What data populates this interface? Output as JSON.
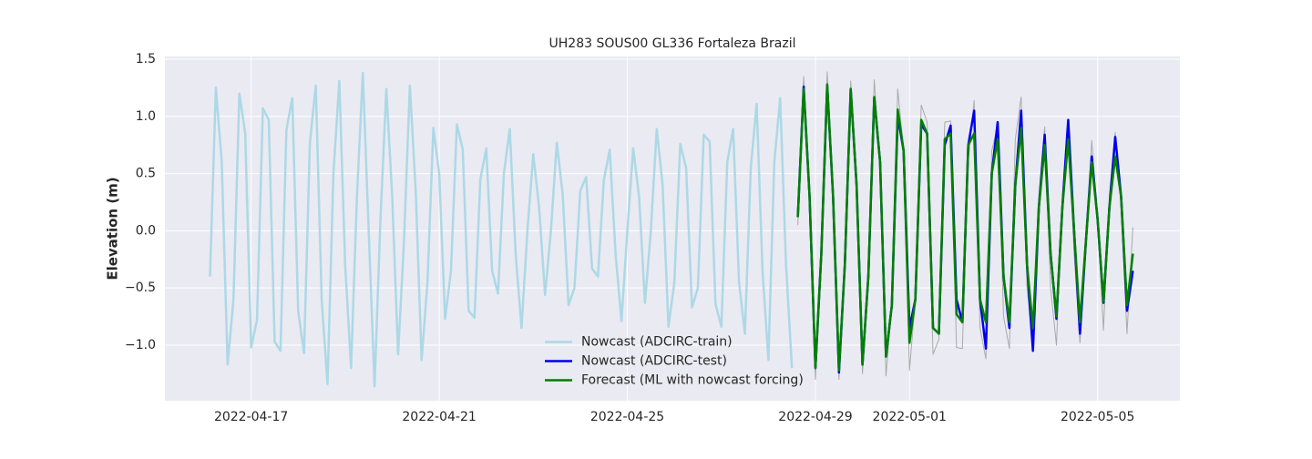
{
  "chart_data": {
    "type": "line",
    "title": "UH283 SOUS00 GL336 Fortaleza Brazil",
    "ylabel": "Elevation (m)",
    "xlim": [
      "2022-04-15T04:00",
      "2022-05-06T18:00"
    ],
    "xticks": [
      "2022-04-17",
      "2022-04-21",
      "2022-04-25",
      "2022-04-29",
      "2022-05-01",
      "2022-05-05"
    ],
    "ylim": [
      -1.486,
      1.524
    ],
    "yticks": [
      {
        "value": -1,
        "label": "−1.0"
      },
      {
        "value": -0.5,
        "label": "−0.5"
      },
      {
        "value": 0,
        "label": "0.0"
      },
      0.5,
      {
        "value": 1,
        "label": "1.0"
      },
      1.5
    ],
    "grid": true,
    "legend": "lower center",
    "series": [
      {
        "color": "#aaaaaa",
        "linewidth": 1,
        "x": [
          "2022-04-28T15:00",
          "2022-04-28T18:00",
          "2022-04-28T21:00",
          "2022-04-29T00:00",
          "2022-04-29T03:00",
          "2022-04-29T06:00",
          "2022-04-29T09:00",
          "2022-04-29T12:00",
          "2022-04-29T15:00",
          "2022-04-29T18:00",
          "2022-04-29T21:00",
          "2022-04-30T00:00",
          "2022-04-30T03:00",
          "2022-04-30T06:00",
          "2022-04-30T09:00",
          "2022-04-30T12:00",
          "2022-04-30T15:00",
          "2022-04-30T18:00",
          "2022-04-30T21:00",
          "2022-05-01T00:00",
          "2022-05-01T03:00",
          "2022-05-01T06:00",
          "2022-05-01T09:00",
          "2022-05-01T12:00",
          "2022-05-01T15:00",
          "2022-05-01T18:00",
          "2022-05-01T21:00",
          "2022-05-02T00:00",
          "2022-05-02T03:00",
          "2022-05-02T06:00",
          "2022-05-02T09:00",
          "2022-05-02T12:00",
          "2022-05-02T15:00",
          "2022-05-02T18:00",
          "2022-05-02T21:00",
          "2022-05-03T00:00",
          "2022-05-03T03:00",
          "2022-05-03T06:00",
          "2022-05-03T09:00",
          "2022-05-03T12:00",
          "2022-05-03T15:00",
          "2022-05-03T18:00",
          "2022-05-03T21:00",
          "2022-05-04T00:00",
          "2022-05-04T03:00",
          "2022-05-04T06:00",
          "2022-05-04T09:00",
          "2022-05-04T12:00",
          "2022-05-04T15:00",
          "2022-05-04T18:00",
          "2022-05-04T21:00",
          "2022-05-05T00:00",
          "2022-05-05T03:00",
          "2022-05-05T06:00",
          "2022-05-05T09:00",
          "2022-05-05T12:00",
          "2022-05-05T15:00",
          "2022-05-05T18:00"
        ],
        "values": [
          0.05,
          1.35,
          0.3,
          -1.3,
          -0.2,
          1.39,
          0.3,
          -1.3,
          -0.3,
          1.31,
          0.4,
          -1.25,
          -0.4,
          1.32,
          0.6,
          -1.27,
          -0.65,
          1.24,
          0.7,
          -1.22,
          -0.6,
          1.1,
          0.95,
          -1.08,
          -0.95,
          0.95,
          0.96,
          -1.02,
          -1.03,
          0.62,
          1.14,
          -0.85,
          -1.12,
          0.7,
          0.92,
          -0.75,
          -1.03,
          0.8,
          1.17,
          -0.5,
          -1.0,
          0.3,
          0.91,
          -0.5,
          -1.0,
          0.3,
          0.96,
          -0.2,
          -0.98,
          -0.2,
          0.79,
          0.1,
          -0.87,
          0.3,
          0.86,
          0.2,
          -0.9,
          0.03
        ]
      },
      {
        "name": "Nowcast (ADCIRC-train)",
        "color": "#add8e6",
        "linewidth": 2.5,
        "x": [
          "2022-04-16T03:00",
          "2022-04-16T06:00",
          "2022-04-16T09:00",
          "2022-04-16T12:00",
          "2022-04-16T15:00",
          "2022-04-16T18:00",
          "2022-04-16T21:00",
          "2022-04-17T00:00",
          "2022-04-17T03:00",
          "2022-04-17T06:00",
          "2022-04-17T09:00",
          "2022-04-17T12:00",
          "2022-04-17T15:00",
          "2022-04-17T18:00",
          "2022-04-17T21:00",
          "2022-04-18T00:00",
          "2022-04-18T03:00",
          "2022-04-18T06:00",
          "2022-04-18T09:00",
          "2022-04-18T12:00",
          "2022-04-18T15:00",
          "2022-04-18T18:00",
          "2022-04-18T21:00",
          "2022-04-19T00:00",
          "2022-04-19T03:00",
          "2022-04-19T06:00",
          "2022-04-19T09:00",
          "2022-04-19T12:00",
          "2022-04-19T15:00",
          "2022-04-19T18:00",
          "2022-04-19T21:00",
          "2022-04-20T00:00",
          "2022-04-20T03:00",
          "2022-04-20T06:00",
          "2022-04-20T09:00",
          "2022-04-20T12:00",
          "2022-04-20T15:00",
          "2022-04-20T18:00",
          "2022-04-20T21:00",
          "2022-04-21T00:00",
          "2022-04-21T03:00",
          "2022-04-21T06:00",
          "2022-04-21T09:00",
          "2022-04-21T12:00",
          "2022-04-21T15:00",
          "2022-04-21T18:00",
          "2022-04-21T21:00",
          "2022-04-22T00:00",
          "2022-04-22T03:00",
          "2022-04-22T06:00",
          "2022-04-22T09:00",
          "2022-04-22T12:00",
          "2022-04-22T15:00",
          "2022-04-22T18:00",
          "2022-04-22T21:00",
          "2022-04-23T00:00",
          "2022-04-23T03:00",
          "2022-04-23T06:00",
          "2022-04-23T09:00",
          "2022-04-23T12:00",
          "2022-04-23T15:00",
          "2022-04-23T18:00",
          "2022-04-23T21:00",
          "2022-04-24T00:00",
          "2022-04-24T03:00",
          "2022-04-24T06:00",
          "2022-04-24T09:00",
          "2022-04-24T12:00",
          "2022-04-24T15:00",
          "2022-04-24T18:00",
          "2022-04-24T21:00",
          "2022-04-25T00:00",
          "2022-04-25T03:00",
          "2022-04-25T06:00",
          "2022-04-25T09:00",
          "2022-04-25T12:00",
          "2022-04-25T15:00",
          "2022-04-25T18:00",
          "2022-04-25T21:00",
          "2022-04-26T00:00",
          "2022-04-26T03:00",
          "2022-04-26T06:00",
          "2022-04-26T09:00",
          "2022-04-26T12:00",
          "2022-04-26T15:00",
          "2022-04-26T18:00",
          "2022-04-26T21:00",
          "2022-04-27T00:00",
          "2022-04-27T03:00",
          "2022-04-27T06:00",
          "2022-04-27T09:00",
          "2022-04-27T12:00",
          "2022-04-27T15:00",
          "2022-04-27T18:00",
          "2022-04-27T21:00",
          "2022-04-28T00:00",
          "2022-04-28T03:00",
          "2022-04-28T06:00",
          "2022-04-28T09:00",
          "2022-04-28T12:00"
        ],
        "values": [
          -0.4,
          1.25,
          0.6,
          -1.17,
          -0.6,
          1.2,
          0.85,
          -1.02,
          -0.78,
          1.07,
          0.97,
          -0.97,
          -1.05,
          0.88,
          1.16,
          -0.7,
          -1.07,
          0.77,
          1.27,
          -0.6,
          -1.34,
          0.5,
          1.31,
          -0.3,
          -1.2,
          0.3,
          1.38,
          0.0,
          -1.36,
          0.1,
          1.24,
          0.3,
          -1.08,
          -0.1,
          1.27,
          0.35,
          -1.13,
          -0.45,
          0.9,
          0.5,
          -0.77,
          -0.35,
          0.93,
          0.71,
          -0.7,
          -0.76,
          0.45,
          0.72,
          -0.35,
          -0.55,
          0.5,
          0.89,
          -0.2,
          -0.85,
          0.0,
          0.67,
          0.2,
          -0.56,
          0.0,
          0.77,
          0.32,
          -0.65,
          -0.5,
          0.35,
          0.47,
          -0.33,
          -0.4,
          0.44,
          0.71,
          -0.2,
          -0.79,
          0.0,
          0.72,
          0.3,
          -0.63,
          0.0,
          0.89,
          0.4,
          -0.84,
          -0.45,
          0.76,
          0.55,
          -0.67,
          -0.5,
          0.84,
          0.78,
          -0.64,
          -0.84,
          0.6,
          0.89,
          -0.45,
          -0.9,
          0.55,
          1.11,
          -0.35,
          -1.13,
          0.6,
          1.16,
          -0.3,
          -1.2
        ]
      },
      {
        "name": "Nowcast (ADCIRC-test)",
        "color": "#0000ee",
        "linewidth": 2.5,
        "x": [
          "2022-04-28T15:00",
          "2022-04-28T18:00",
          "2022-04-28T21:00",
          "2022-04-29T00:00",
          "2022-04-29T03:00",
          "2022-04-29T06:00",
          "2022-04-29T09:00",
          "2022-04-29T12:00",
          "2022-04-29T15:00",
          "2022-04-29T18:00",
          "2022-04-29T21:00",
          "2022-04-30T00:00",
          "2022-04-30T03:00",
          "2022-04-30T06:00",
          "2022-04-30T09:00",
          "2022-04-30T12:00",
          "2022-04-30T15:00",
          "2022-04-30T18:00",
          "2022-04-30T21:00",
          "2022-05-01T00:00",
          "2022-05-01T03:00",
          "2022-05-01T06:00",
          "2022-05-01T09:00",
          "2022-05-01T12:00",
          "2022-05-01T15:00",
          "2022-05-01T18:00",
          "2022-05-01T21:00",
          "2022-05-02T00:00",
          "2022-05-02T03:00",
          "2022-05-02T06:00",
          "2022-05-02T09:00",
          "2022-05-02T12:00",
          "2022-05-02T15:00",
          "2022-05-02T18:00",
          "2022-05-02T21:00",
          "2022-05-03T00:00",
          "2022-05-03T03:00",
          "2022-05-03T06:00",
          "2022-05-03T09:00",
          "2022-05-03T12:00",
          "2022-05-03T15:00",
          "2022-05-03T18:00",
          "2022-05-03T21:00",
          "2022-05-04T00:00",
          "2022-05-04T03:00",
          "2022-05-04T06:00",
          "2022-05-04T09:00",
          "2022-05-04T12:00",
          "2022-05-04T15:00",
          "2022-05-04T18:00",
          "2022-05-04T21:00",
          "2022-05-05T00:00",
          "2022-05-05T03:00",
          "2022-05-05T06:00",
          "2022-05-05T09:00",
          "2022-05-05T12:00",
          "2022-05-05T15:00",
          "2022-05-05T18:00"
        ],
        "values": [
          0.12,
          1.26,
          0.3,
          -1.2,
          -0.2,
          1.27,
          0.3,
          -1.24,
          -0.3,
          1.24,
          0.4,
          -1.17,
          -0.4,
          1.16,
          0.6,
          -1.1,
          -0.65,
          1.0,
          0.7,
          -0.85,
          -0.6,
          0.93,
          0.85,
          -0.85,
          -0.9,
          0.75,
          0.92,
          -0.6,
          -0.8,
          0.75,
          1.05,
          -0.6,
          -1.03,
          0.5,
          0.95,
          -0.4,
          -0.85,
          0.4,
          1.05,
          -0.3,
          -1.05,
          0.2,
          0.84,
          -0.2,
          -0.77,
          0.2,
          0.97,
          0.0,
          -0.9,
          -0.1,
          0.65,
          0.1,
          -0.63,
          0.2,
          0.82,
          0.3,
          -0.7,
          -0.35
        ]
      },
      {
        "name": "Forecast (ML with nowcast forcing)",
        "color": "#008000",
        "linewidth": 2.5,
        "x": [
          "2022-04-28T15:00",
          "2022-04-28T18:00",
          "2022-04-28T21:00",
          "2022-04-29T00:00",
          "2022-04-29T03:00",
          "2022-04-29T06:00",
          "2022-04-29T09:00",
          "2022-04-29T12:00",
          "2022-04-29T15:00",
          "2022-04-29T18:00",
          "2022-04-29T21:00",
          "2022-04-30T00:00",
          "2022-04-30T03:00",
          "2022-04-30T06:00",
          "2022-04-30T09:00",
          "2022-04-30T12:00",
          "2022-04-30T15:00",
          "2022-04-30T18:00",
          "2022-04-30T21:00",
          "2022-05-01T00:00",
          "2022-05-01T03:00",
          "2022-05-01T06:00",
          "2022-05-01T09:00",
          "2022-05-01T12:00",
          "2022-05-01T15:00",
          "2022-05-01T18:00",
          "2022-05-01T21:00",
          "2022-05-02T00:00",
          "2022-05-02T03:00",
          "2022-05-02T06:00",
          "2022-05-02T09:00",
          "2022-05-02T12:00",
          "2022-05-02T15:00",
          "2022-05-02T18:00",
          "2022-05-02T21:00",
          "2022-05-03T00:00",
          "2022-05-03T03:00",
          "2022-05-03T06:00",
          "2022-05-03T09:00",
          "2022-05-03T12:00",
          "2022-05-03T15:00",
          "2022-05-03T18:00",
          "2022-05-03T21:00",
          "2022-05-04T00:00",
          "2022-05-04T03:00",
          "2022-05-04T06:00",
          "2022-05-04T09:00",
          "2022-05-04T12:00",
          "2022-05-04T15:00",
          "2022-05-04T18:00",
          "2022-05-04T21:00",
          "2022-05-05T00:00",
          "2022-05-05T03:00",
          "2022-05-05T06:00",
          "2022-05-05T09:00",
          "2022-05-05T12:00",
          "2022-05-05T15:00",
          "2022-05-05T18:00"
        ],
        "values": [
          0.12,
          1.24,
          0.3,
          -1.2,
          -0.2,
          1.28,
          0.3,
          -1.22,
          -0.3,
          1.24,
          0.4,
          -1.17,
          -0.4,
          1.17,
          0.6,
          -1.1,
          -0.65,
          1.06,
          0.7,
          -0.98,
          -0.6,
          0.97,
          0.85,
          -0.85,
          -0.9,
          0.8,
          0.85,
          -0.73,
          -0.8,
          0.75,
          0.85,
          -0.6,
          -0.8,
          0.5,
          0.8,
          -0.4,
          -0.8,
          0.4,
          0.9,
          -0.3,
          -0.85,
          0.2,
          0.75,
          -0.2,
          -0.75,
          0.2,
          0.8,
          0.0,
          -0.8,
          -0.1,
          0.6,
          0.1,
          -0.62,
          0.2,
          0.65,
          0.3,
          -0.65,
          -0.2
        ]
      }
    ]
  }
}
